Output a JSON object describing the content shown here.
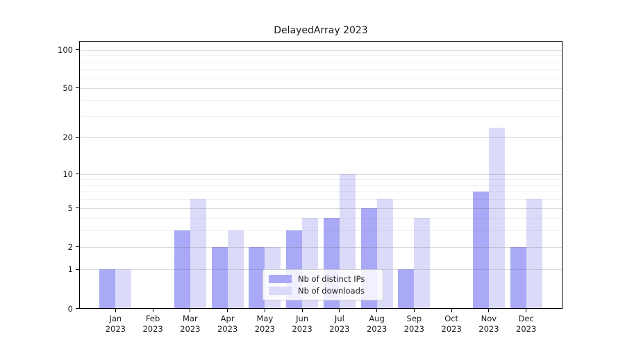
{
  "title": "DelayedArray 2023",
  "chart_data": {
    "type": "bar",
    "title": "DelayedArray 2023",
    "categories": [
      "Jan",
      "Feb",
      "Mar",
      "Apr",
      "May",
      "Jun",
      "Jul",
      "Aug",
      "Sep",
      "Oct",
      "Nov",
      "Dec"
    ],
    "x_year_label": "2023",
    "series": [
      {
        "name": "Nb of distinct IPs",
        "color": "#a9a9f8",
        "values": [
          1,
          0,
          3,
          2,
          2,
          3,
          4,
          5,
          1,
          0,
          7,
          2
        ]
      },
      {
        "name": "Nb of downloads",
        "color": "#dbdbf9",
        "values": [
          1,
          0,
          6,
          3,
          2,
          4,
          10,
          6,
          4,
          0,
          24,
          6
        ]
      }
    ],
    "y_scale": "log10(1+x)",
    "y_ticks": [
      0,
      1,
      2,
      5,
      10,
      20,
      50,
      100
    ],
    "y_minor_gridlines": [
      3,
      4,
      6,
      7,
      8,
      9,
      30,
      40,
      60,
      70,
      80,
      90
    ],
    "y_axis_max": 117,
    "grid": true,
    "legend_position": "lower center",
    "xlabel": "",
    "ylabel": ""
  }
}
